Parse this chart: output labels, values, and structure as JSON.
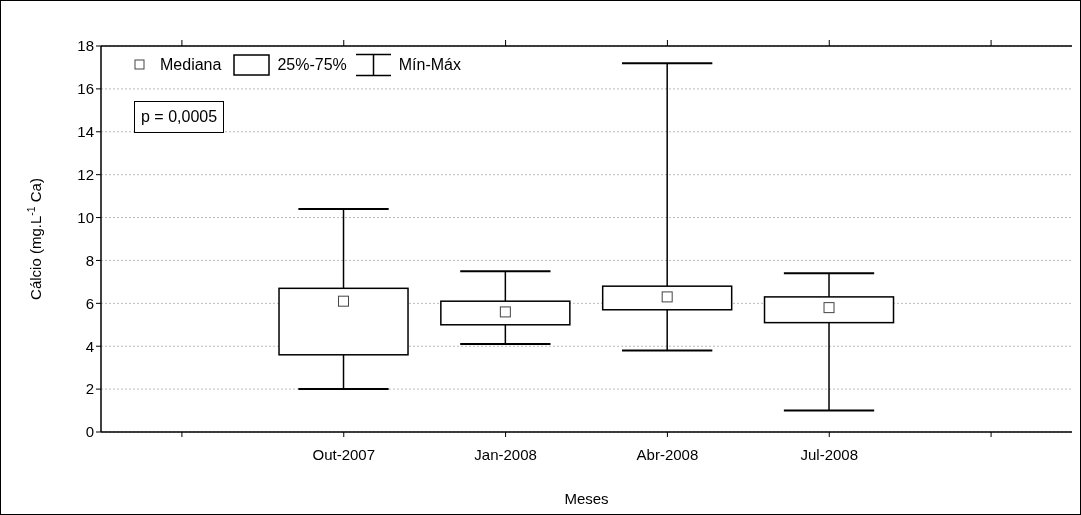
{
  "chart_data": {
    "type": "box",
    "xlabel": "Meses",
    "ylabel": "Cálcio (mg.L$^{-1}$ Ca)",
    "categories": [
      null,
      "Out-2007",
      "Jan-2008",
      "Abr-2008",
      "Jul-2008",
      null
    ],
    "boxes": [
      null,
      {
        "low": 2.0,
        "q1": 3.6,
        "median": 6.1,
        "q3": 6.7,
        "high": 10.4
      },
      {
        "low": 4.1,
        "q1": 5.0,
        "median": 5.6,
        "q3": 6.1,
        "high": 7.5
      },
      {
        "low": 3.8,
        "q1": 5.7,
        "median": 6.3,
        "q3": 6.8,
        "high": 17.2
      },
      {
        "low": 1.0,
        "q1": 5.1,
        "median": 5.8,
        "q3": 6.3,
        "high": 7.4
      },
      null
    ],
    "ylim": [
      0,
      18
    ],
    "yticks": [
      0,
      2,
      4,
      6,
      8,
      10,
      12,
      14,
      16,
      18
    ],
    "grid": "y",
    "annotations": [
      "Mediana",
      "25%-75%",
      "Mín-Máx",
      "p = 0,0005"
    ]
  }
}
